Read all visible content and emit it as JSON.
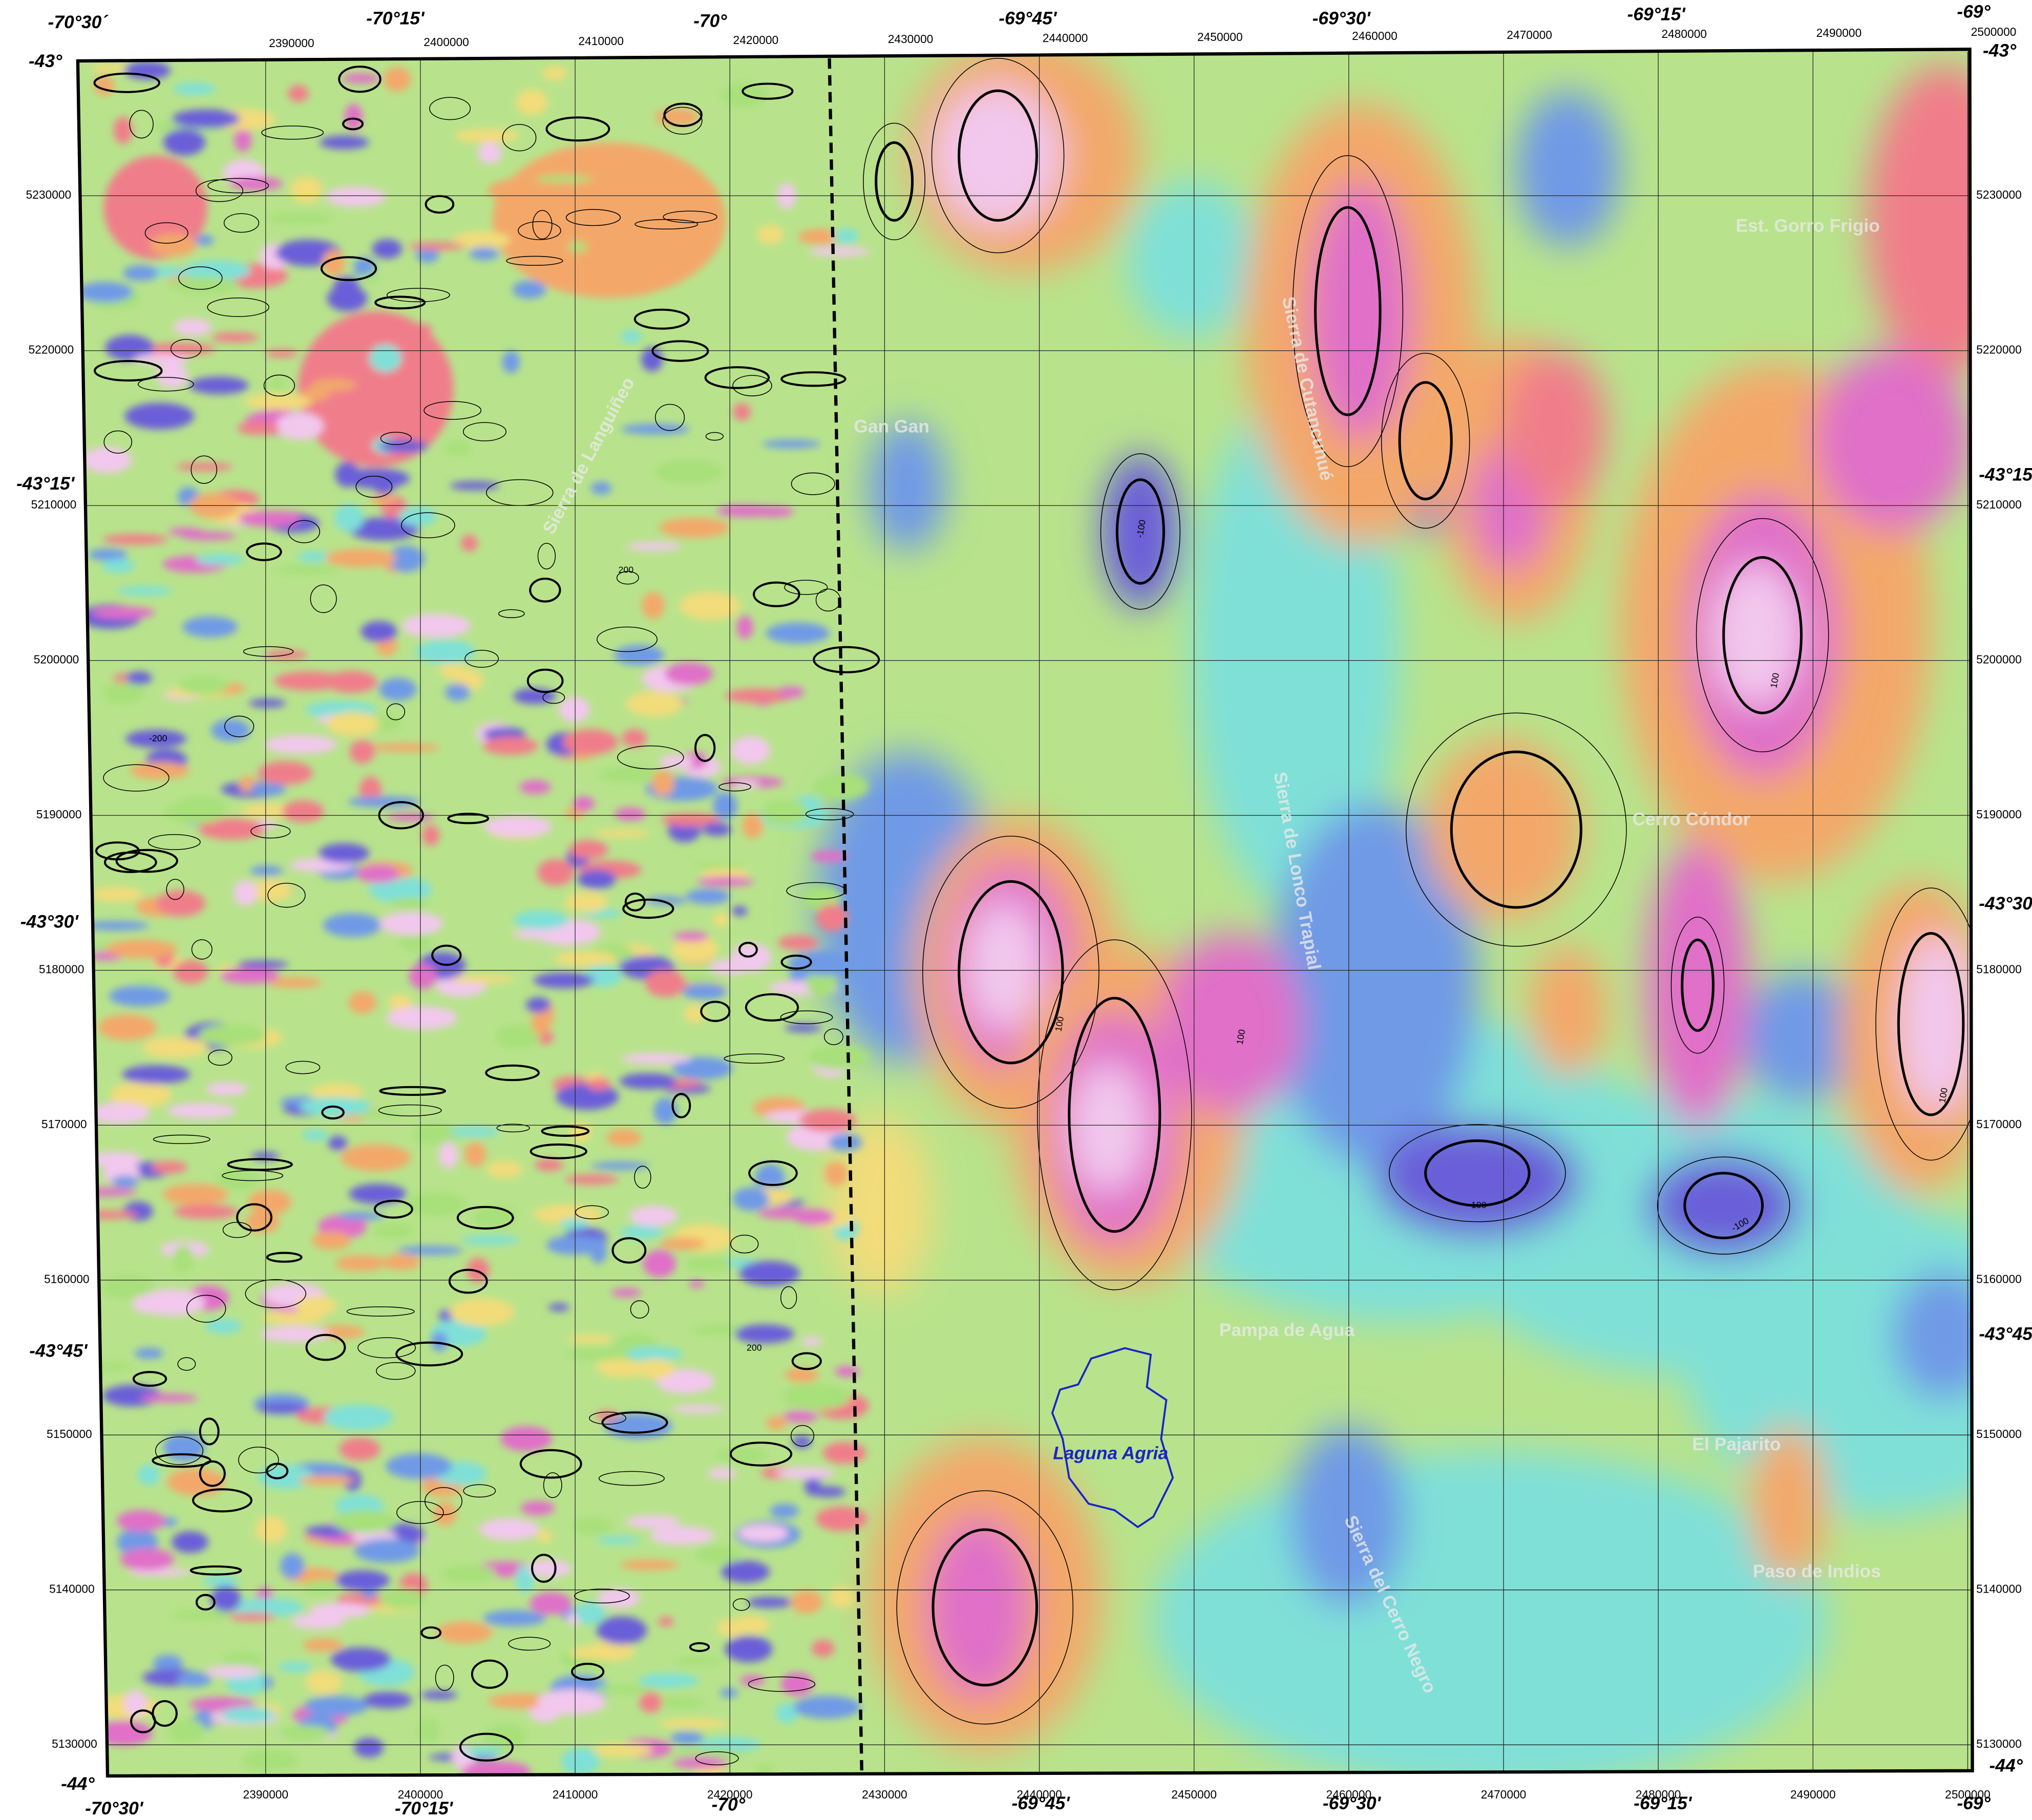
{
  "map": {
    "lon_top": [
      "-70°30´",
      "-70°15'",
      "-70°",
      "-69°45'",
      "-69°30'",
      "-69°15'",
      "-69°"
    ],
    "lon_bottom": [
      "-70°30'",
      "-70°15'",
      "-70°",
      "-69°45'",
      "-69°30'",
      "-69°15'",
      "-69°"
    ],
    "lat_left": [
      "-43°",
      "-43°15'",
      "-43°30'",
      "-43°45'",
      "-44°"
    ],
    "lat_right": [
      "-43°",
      "-43°15'",
      "-43°30'",
      "-43°45'",
      "-44°"
    ],
    "eastings": [
      2390000,
      2400000,
      2410000,
      2420000,
      2430000,
      2440000,
      2450000,
      2460000,
      2470000,
      2480000,
      2490000,
      2500000
    ],
    "northings": [
      5230000,
      5220000,
      5210000,
      5200000,
      5190000,
      5180000,
      5170000,
      5160000,
      5150000,
      5140000,
      5130000
    ],
    "places": [
      "Sierra de Languiñeo",
      "Gan Gan",
      "Sierra de Cutancunué",
      "Est. Gorro Frigio",
      "Sierra de Lonco Trapial",
      "Cerro Cóndor",
      "Pampa de Agua",
      "El Pajarito",
      "Paso de Indios",
      "Sierra del Cerro Negro"
    ],
    "lake": "Laguna Agria",
    "contour_labels": [
      "100",
      "-100",
      "100",
      "-100",
      "100",
      "100",
      "-100",
      "200",
      "-200",
      "200"
    ]
  }
}
